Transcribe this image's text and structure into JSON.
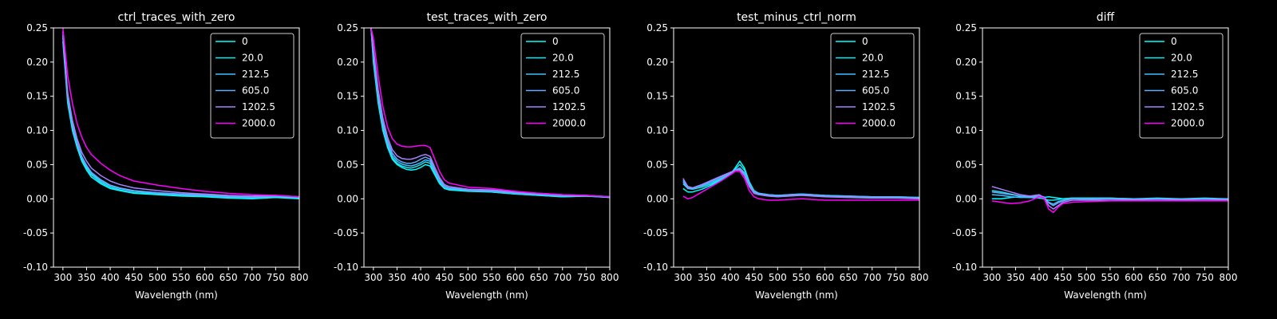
{
  "chart_data": [
    {
      "type": "line",
      "title": "ctrl_traces_with_zero",
      "xlabel": "Wavelength (nm)",
      "ylabel": "",
      "xlim": [
        280,
        800
      ],
      "ylim": [
        -0.1,
        0.25
      ],
      "xticks": [
        "300",
        "350",
        "400",
        "450",
        "500",
        "550",
        "600",
        "650",
        "700",
        "750",
        "800"
      ],
      "yticks": [
        "-0.10",
        "-0.05",
        "0.00",
        "0.05",
        "0.10",
        "0.15",
        "0.20",
        "0.25"
      ],
      "legend_position": "top-right",
      "x": [
        300,
        310,
        320,
        330,
        340,
        350,
        360,
        380,
        400,
        420,
        450,
        500,
        550,
        600,
        650,
        700,
        750,
        800
      ],
      "series": [
        {
          "name": "0",
          "color": "#00ffff",
          "values": [
            0.23,
            0.14,
            0.1,
            0.075,
            0.055,
            0.042,
            0.032,
            0.022,
            0.015,
            0.012,
            0.008,
            0.006,
            0.004,
            0.003,
            0.001,
            0.0,
            0.002,
            0.0
          ]
        },
        {
          "name": "20.0",
          "color": "#1ae5f2",
          "values": [
            0.235,
            0.145,
            0.104,
            0.078,
            0.058,
            0.045,
            0.035,
            0.024,
            0.017,
            0.013,
            0.009,
            0.007,
            0.005,
            0.004,
            0.002,
            0.001,
            0.003,
            0.001
          ]
        },
        {
          "name": "212.5",
          "color": "#3fc0ff",
          "values": [
            0.238,
            0.148,
            0.107,
            0.08,
            0.06,
            0.047,
            0.037,
            0.026,
            0.019,
            0.015,
            0.011,
            0.008,
            0.006,
            0.005,
            0.003,
            0.002,
            0.004,
            0.002
          ]
        },
        {
          "name": "605.0",
          "color": "#66aaff",
          "values": [
            0.24,
            0.15,
            0.11,
            0.083,
            0.062,
            0.049,
            0.039,
            0.028,
            0.02,
            0.016,
            0.012,
            0.009,
            0.007,
            0.006,
            0.004,
            0.003,
            0.004,
            0.003
          ]
        },
        {
          "name": "1202.5",
          "color": "#a880ff",
          "values": [
            0.245,
            0.155,
            0.115,
            0.088,
            0.068,
            0.055,
            0.045,
            0.034,
            0.026,
            0.021,
            0.016,
            0.012,
            0.009,
            0.007,
            0.005,
            0.004,
            0.005,
            0.003
          ]
        },
        {
          "name": "2000.0",
          "color": "#ff00ff",
          "values": [
            0.25,
            0.18,
            0.14,
            0.11,
            0.09,
            0.075,
            0.065,
            0.052,
            0.042,
            0.034,
            0.026,
            0.02,
            0.015,
            0.011,
            0.008,
            0.006,
            0.005,
            0.003
          ]
        }
      ]
    },
    {
      "type": "line",
      "title": "test_traces_with_zero",
      "xlabel": "Wavelength (nm)",
      "ylabel": "",
      "xlim": [
        280,
        800
      ],
      "ylim": [
        -0.1,
        0.25
      ],
      "xticks": [
        "300",
        "350",
        "400",
        "450",
        "500",
        "550",
        "600",
        "650",
        "700",
        "750",
        "800"
      ],
      "yticks": [
        "-0.10",
        "-0.05",
        "0.00",
        "0.05",
        "0.10",
        "0.15",
        "0.20",
        "0.25"
      ],
      "legend_position": "top-right",
      "x": [
        295,
        300,
        310,
        320,
        330,
        340,
        350,
        360,
        370,
        380,
        390,
        400,
        410,
        420,
        430,
        440,
        450,
        460,
        480,
        500,
        550,
        600,
        650,
        700,
        750,
        800
      ],
      "series": [
        {
          "name": "0",
          "color": "#00ffff",
          "values": [
            0.25,
            0.2,
            0.14,
            0.1,
            0.075,
            0.058,
            0.05,
            0.046,
            0.043,
            0.042,
            0.043,
            0.046,
            0.05,
            0.048,
            0.035,
            0.022,
            0.015,
            0.013,
            0.012,
            0.011,
            0.01,
            0.007,
            0.005,
            0.003,
            0.004,
            0.002
          ]
        },
        {
          "name": "20.0",
          "color": "#1ae5f2",
          "values": [
            0.25,
            0.205,
            0.145,
            0.104,
            0.078,
            0.06,
            0.052,
            0.048,
            0.046,
            0.045,
            0.047,
            0.05,
            0.054,
            0.052,
            0.038,
            0.024,
            0.016,
            0.014,
            0.013,
            0.012,
            0.01,
            0.007,
            0.005,
            0.003,
            0.004,
            0.002
          ]
        },
        {
          "name": "212.5",
          "color": "#3fc0ff",
          "values": [
            0.25,
            0.21,
            0.15,
            0.108,
            0.081,
            0.063,
            0.055,
            0.051,
            0.049,
            0.048,
            0.05,
            0.053,
            0.057,
            0.055,
            0.04,
            0.026,
            0.017,
            0.015,
            0.014,
            0.012,
            0.011,
            0.008,
            0.006,
            0.004,
            0.004,
            0.003
          ]
        },
        {
          "name": "605.0",
          "color": "#66aaff",
          "values": [
            0.25,
            0.215,
            0.155,
            0.112,
            0.085,
            0.067,
            0.058,
            0.054,
            0.052,
            0.052,
            0.054,
            0.058,
            0.061,
            0.058,
            0.042,
            0.028,
            0.019,
            0.016,
            0.015,
            0.013,
            0.012,
            0.009,
            0.007,
            0.005,
            0.005,
            0.003
          ]
        },
        {
          "name": "1202.5",
          "color": "#a880ff",
          "values": [
            0.25,
            0.22,
            0.16,
            0.118,
            0.09,
            0.072,
            0.063,
            0.059,
            0.058,
            0.058,
            0.06,
            0.063,
            0.065,
            0.062,
            0.046,
            0.031,
            0.021,
            0.018,
            0.016,
            0.014,
            0.013,
            0.01,
            0.008,
            0.006,
            0.005,
            0.003
          ]
        },
        {
          "name": "2000.0",
          "color": "#ff00ff",
          "values": [
            0.25,
            0.235,
            0.18,
            0.135,
            0.105,
            0.088,
            0.08,
            0.077,
            0.076,
            0.076,
            0.077,
            0.078,
            0.078,
            0.075,
            0.058,
            0.04,
            0.028,
            0.023,
            0.02,
            0.017,
            0.015,
            0.011,
            0.008,
            0.006,
            0.005,
            0.003
          ]
        }
      ]
    },
    {
      "type": "line",
      "title": "test_minus_ctrl_norm",
      "xlabel": "Wavelength (nm)",
      "ylabel": "",
      "xlim": [
        280,
        800
      ],
      "ylim": [
        -0.1,
        0.25
      ],
      "xticks": [
        "300",
        "350",
        "400",
        "450",
        "500",
        "550",
        "600",
        "650",
        "700",
        "750",
        "800"
      ],
      "yticks": [
        "-0.10",
        "-0.05",
        "0.00",
        "0.05",
        "0.10",
        "0.15",
        "0.20",
        "0.25"
      ],
      "legend_position": "top-right",
      "x": [
        300,
        310,
        320,
        340,
        360,
        380,
        400,
        410,
        420,
        430,
        440,
        450,
        460,
        480,
        500,
        550,
        600,
        650,
        700,
        750,
        800
      ],
      "series": [
        {
          "name": "0",
          "color": "#00ffff",
          "values": [
            0.015,
            0.01,
            0.01,
            0.014,
            0.02,
            0.028,
            0.036,
            0.045,
            0.055,
            0.045,
            0.025,
            0.012,
            0.008,
            0.006,
            0.005,
            0.006,
            0.004,
            0.003,
            0.003,
            0.002,
            0.002
          ]
        },
        {
          "name": "20.0",
          "color": "#1ae5f2",
          "values": [
            0.022,
            0.015,
            0.014,
            0.017,
            0.022,
            0.029,
            0.036,
            0.043,
            0.05,
            0.042,
            0.024,
            0.012,
            0.008,
            0.006,
            0.005,
            0.007,
            0.005,
            0.004,
            0.003,
            0.003,
            0.002
          ]
        },
        {
          "name": "212.5",
          "color": "#3fc0ff",
          "values": [
            0.027,
            0.018,
            0.016,
            0.019,
            0.024,
            0.03,
            0.037,
            0.042,
            0.045,
            0.038,
            0.022,
            0.011,
            0.008,
            0.006,
            0.005,
            0.007,
            0.005,
            0.004,
            0.003,
            0.003,
            0.002
          ]
        },
        {
          "name": "605.0",
          "color": "#66aaff",
          "values": [
            0.025,
            0.016,
            0.015,
            0.02,
            0.026,
            0.032,
            0.038,
            0.042,
            0.043,
            0.036,
            0.02,
            0.01,
            0.007,
            0.005,
            0.004,
            0.006,
            0.004,
            0.003,
            0.002,
            0.002,
            0.001
          ]
        },
        {
          "name": "1202.5",
          "color": "#a880ff",
          "values": [
            0.03,
            0.018,
            0.016,
            0.021,
            0.027,
            0.033,
            0.039,
            0.042,
            0.042,
            0.034,
            0.018,
            0.008,
            0.006,
            0.004,
            0.003,
            0.005,
            0.003,
            0.002,
            0.001,
            0.001,
            0.0
          ]
        },
        {
          "name": "2000.0",
          "color": "#ff00ff",
          "values": [
            0.004,
            0.0,
            0.002,
            0.01,
            0.018,
            0.026,
            0.035,
            0.04,
            0.04,
            0.03,
            0.012,
            0.003,
            0.0,
            -0.002,
            -0.002,
            0.0,
            -0.002,
            -0.002,
            -0.002,
            -0.002,
            -0.002
          ]
        }
      ]
    },
    {
      "type": "line",
      "title": "diff",
      "xlabel": "Wavelength (nm)",
      "ylabel": "",
      "xlim": [
        280,
        800
      ],
      "ylim": [
        -0.1,
        0.25
      ],
      "xticks": [
        "300",
        "350",
        "400",
        "450",
        "500",
        "550",
        "600",
        "650",
        "700",
        "750",
        "800"
      ],
      "yticks": [
        "-0.10",
        "-0.05",
        "0.00",
        "0.05",
        "0.10",
        "0.15",
        "0.20",
        "0.25"
      ],
      "legend_position": "top-right",
      "x": [
        300,
        320,
        340,
        360,
        380,
        400,
        410,
        420,
        430,
        440,
        450,
        470,
        500,
        550,
        600,
        650,
        700,
        750,
        800
      ],
      "series": [
        {
          "name": "0",
          "color": "#00ffff",
          "values": [
            0.0,
            0.0,
            0.002,
            0.003,
            0.002,
            0.001,
            0.002,
            0.003,
            0.002,
            0.001,
            0.0,
            0.001,
            0.001,
            0.001,
            0.0,
            0.001,
            0.0,
            0.001,
            0.0
          ]
        },
        {
          "name": "20.0",
          "color": "#1ae5f2",
          "values": [
            0.012,
            0.01,
            0.007,
            0.004,
            0.002,
            0.001,
            0.0,
            -0.002,
            -0.002,
            -0.001,
            0.0,
            0.001,
            0.001,
            0.001,
            0.0,
            0.0,
            0.0,
            0.0,
            0.0
          ]
        },
        {
          "name": "212.5",
          "color": "#3fc0ff",
          "values": [
            0.006,
            0.005,
            0.003,
            0.002,
            0.002,
            0.003,
            0.002,
            -0.005,
            -0.008,
            -0.004,
            -0.002,
            0.0,
            0.0,
            0.0,
            0.0,
            0.0,
            0.0,
            0.0,
            0.0
          ]
        },
        {
          "name": "605.0",
          "color": "#66aaff",
          "values": [
            0.01,
            0.008,
            0.006,
            0.004,
            0.003,
            0.004,
            0.003,
            -0.006,
            -0.01,
            -0.006,
            -0.003,
            0.0,
            -0.001,
            0.0,
            -0.001,
            0.0,
            -0.001,
            0.0,
            -0.001
          ]
        },
        {
          "name": "1202.5",
          "color": "#a880ff",
          "values": [
            0.018,
            0.014,
            0.01,
            0.006,
            0.004,
            0.006,
            0.002,
            -0.01,
            -0.015,
            -0.01,
            -0.005,
            -0.002,
            -0.002,
            -0.002,
            -0.002,
            -0.002,
            -0.002,
            -0.002,
            -0.002
          ]
        },
        {
          "name": "2000.0",
          "color": "#ff00ff",
          "values": [
            -0.003,
            -0.005,
            -0.007,
            -0.006,
            -0.003,
            0.003,
            0.001,
            -0.015,
            -0.02,
            -0.012,
            -0.007,
            -0.005,
            -0.004,
            -0.003,
            -0.003,
            -0.003,
            -0.003,
            -0.003,
            -0.003
          ]
        }
      ]
    }
  ]
}
